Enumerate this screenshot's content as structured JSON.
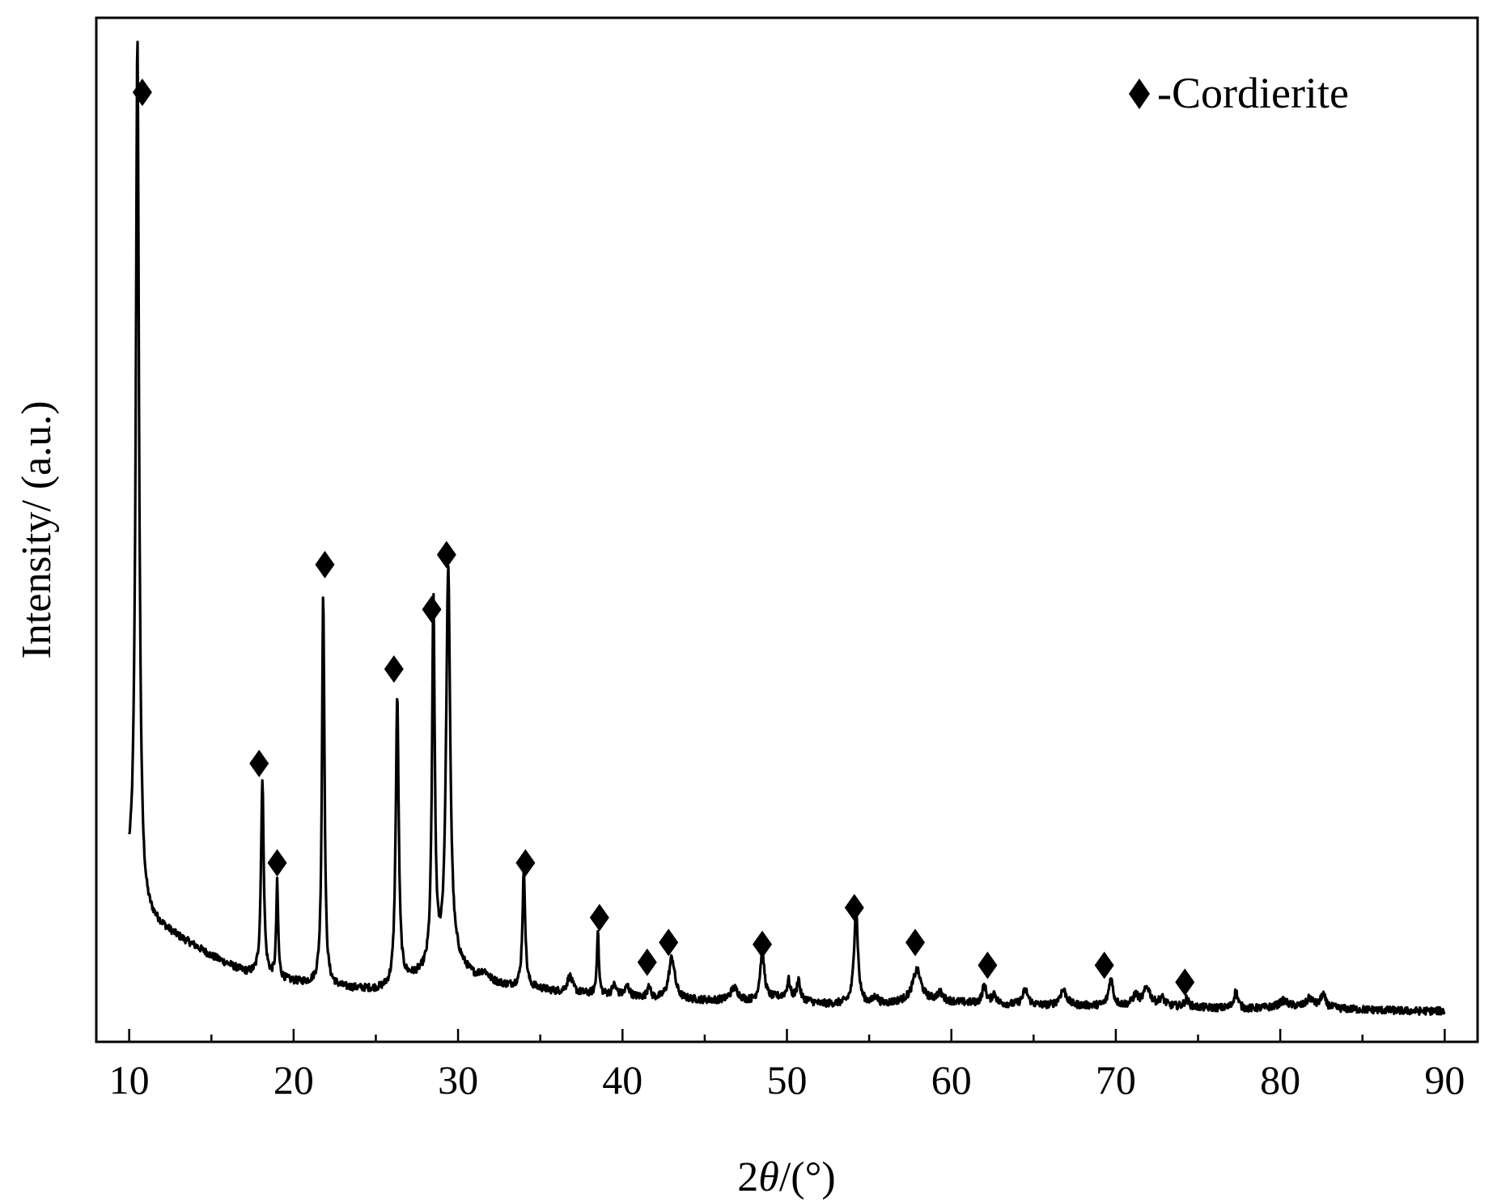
{
  "chart_data": {
    "type": "line",
    "xlabel_prefix": "2",
    "xlabel_theta": "θ",
    "xlabel_suffix": "/(°)",
    "ylabel": "Intensity/ (a.u.)",
    "xlim": [
      8,
      92
    ],
    "ylim": [
      -3,
      100
    ],
    "x_ticks": [
      10,
      20,
      30,
      40,
      50,
      60,
      70,
      80,
      90
    ],
    "x_tick_labels": [
      "10",
      "20",
      "30",
      "40",
      "50",
      "60",
      "70",
      "80",
      "90"
    ],
    "y_ticks_shown": false,
    "grid": false,
    "legend": {
      "position": "top-right",
      "marker": "diamond",
      "label": "-Cordierite"
    },
    "baseline": [
      [
        10,
        13
      ],
      [
        10.6,
        10
      ],
      [
        11,
        9.5
      ],
      [
        12,
        8.5
      ],
      [
        13,
        7.5
      ],
      [
        14,
        6.6
      ],
      [
        15,
        5.6
      ],
      [
        16,
        4.8
      ],
      [
        17,
        4.0
      ],
      [
        18,
        3.6
      ],
      [
        19,
        3.3
      ],
      [
        20,
        3.0
      ],
      [
        21,
        2.8
      ],
      [
        22,
        2.6
      ],
      [
        23,
        2.4
      ],
      [
        24,
        2.3
      ],
      [
        25,
        2.2
      ],
      [
        26,
        2.3
      ],
      [
        27,
        3.2
      ],
      [
        28,
        3.8
      ],
      [
        30,
        4.6
      ],
      [
        31,
        3.4
      ],
      [
        32,
        2.9
      ],
      [
        33,
        2.6
      ],
      [
        34,
        2.5
      ],
      [
        35,
        2.3
      ],
      [
        36,
        2.0
      ],
      [
        37,
        1.9
      ],
      [
        38,
        1.8
      ],
      [
        40,
        1.6
      ],
      [
        42,
        1.3
      ],
      [
        44,
        1.2
      ],
      [
        46,
        1.1
      ],
      [
        48,
        1.0
      ],
      [
        50,
        1.6
      ],
      [
        52,
        0.8
      ],
      [
        54,
        0.8
      ],
      [
        56,
        0.8
      ],
      [
        58,
        1.2
      ],
      [
        60,
        1.0
      ],
      [
        62,
        0.8
      ],
      [
        64,
        0.7
      ],
      [
        66,
        0.6
      ],
      [
        68,
        0.6
      ],
      [
        70,
        0.6
      ],
      [
        72,
        0.6
      ],
      [
        74,
        0.5
      ],
      [
        76,
        0.4
      ],
      [
        78,
        0.3
      ],
      [
        80,
        0.5
      ],
      [
        82,
        0.6
      ],
      [
        84,
        0.3
      ],
      [
        86,
        0.2
      ],
      [
        88,
        0.1
      ],
      [
        90,
        0.1
      ]
    ],
    "peaks": [
      {
        "x": 10.5,
        "height": 87.5,
        "width": 0.12
      },
      {
        "x": 18.1,
        "height": 19.5,
        "width": 0.1
      },
      {
        "x": 19.0,
        "height": 9.5,
        "width": 0.07
      },
      {
        "x": 21.8,
        "height": 39.5,
        "width": 0.09
      },
      {
        "x": 26.3,
        "height": 29.0,
        "width": 0.11
      },
      {
        "x": 28.5,
        "height": 37.0,
        "width": 0.1
      },
      {
        "x": 29.4,
        "height": 40.0,
        "width": 0.15
      },
      {
        "x": 31.6,
        "height": 0.8,
        "width": 0.35
      },
      {
        "x": 34.0,
        "height": 11.5,
        "width": 0.1
      },
      {
        "x": 36.8,
        "height": 1.6,
        "width": 0.2
      },
      {
        "x": 38.5,
        "height": 6.5,
        "width": 0.07
      },
      {
        "x": 39.5,
        "height": 1.0,
        "width": 0.15
      },
      {
        "x": 40.3,
        "height": 1.0,
        "width": 0.15
      },
      {
        "x": 41.6,
        "height": 1.4,
        "width": 0.1
      },
      {
        "x": 43.0,
        "height": 4.2,
        "width": 0.22
      },
      {
        "x": 46.8,
        "height": 1.3,
        "width": 0.3
      },
      {
        "x": 48.5,
        "height": 4.8,
        "width": 0.16
      },
      {
        "x": 50.1,
        "height": 1.6,
        "width": 0.1
      },
      {
        "x": 50.7,
        "height": 2.0,
        "width": 0.1
      },
      {
        "x": 54.2,
        "height": 9.5,
        "width": 0.14
      },
      {
        "x": 55.4,
        "height": 0.7,
        "width": 0.15
      },
      {
        "x": 57.9,
        "height": 3.0,
        "width": 0.3
      },
      {
        "x": 59.3,
        "height": 0.8,
        "width": 0.2
      },
      {
        "x": 62.0,
        "height": 1.8,
        "width": 0.15
      },
      {
        "x": 62.6,
        "height": 1.0,
        "width": 0.15
      },
      {
        "x": 64.5,
        "height": 1.5,
        "width": 0.2
      },
      {
        "x": 66.8,
        "height": 1.6,
        "width": 0.25
      },
      {
        "x": 69.7,
        "height": 2.7,
        "width": 0.16
      },
      {
        "x": 71.2,
        "height": 1.0,
        "width": 0.2
      },
      {
        "x": 71.9,
        "height": 1.8,
        "width": 0.25
      },
      {
        "x": 72.8,
        "height": 0.8,
        "width": 0.2
      },
      {
        "x": 74.3,
        "height": 0.8,
        "width": 0.15
      },
      {
        "x": 77.3,
        "height": 1.7,
        "width": 0.15
      },
      {
        "x": 80.2,
        "height": 0.6,
        "width": 0.3
      },
      {
        "x": 81.8,
        "height": 0.8,
        "width": 0.2
      },
      {
        "x": 82.6,
        "height": 1.3,
        "width": 0.15
      }
    ],
    "markers": [
      {
        "x": 10.8,
        "y": 92.5
      },
      {
        "x": 17.9,
        "y": 25.0
      },
      {
        "x": 19.0,
        "y": 15.0
      },
      {
        "x": 21.9,
        "y": 45.0
      },
      {
        "x": 26.1,
        "y": 34.5
      },
      {
        "x": 28.4,
        "y": 40.5
      },
      {
        "x": 29.3,
        "y": 46.0
      },
      {
        "x": 34.1,
        "y": 15.0
      },
      {
        "x": 38.6,
        "y": 9.5
      },
      {
        "x": 41.5,
        "y": 5.0
      },
      {
        "x": 42.8,
        "y": 7.0
      },
      {
        "x": 48.5,
        "y": 6.8
      },
      {
        "x": 54.1,
        "y": 10.5
      },
      {
        "x": 57.8,
        "y": 7.0
      },
      {
        "x": 62.2,
        "y": 4.7
      },
      {
        "x": 69.3,
        "y": 4.7
      },
      {
        "x": 74.2,
        "y": 3.0
      }
    ]
  }
}
